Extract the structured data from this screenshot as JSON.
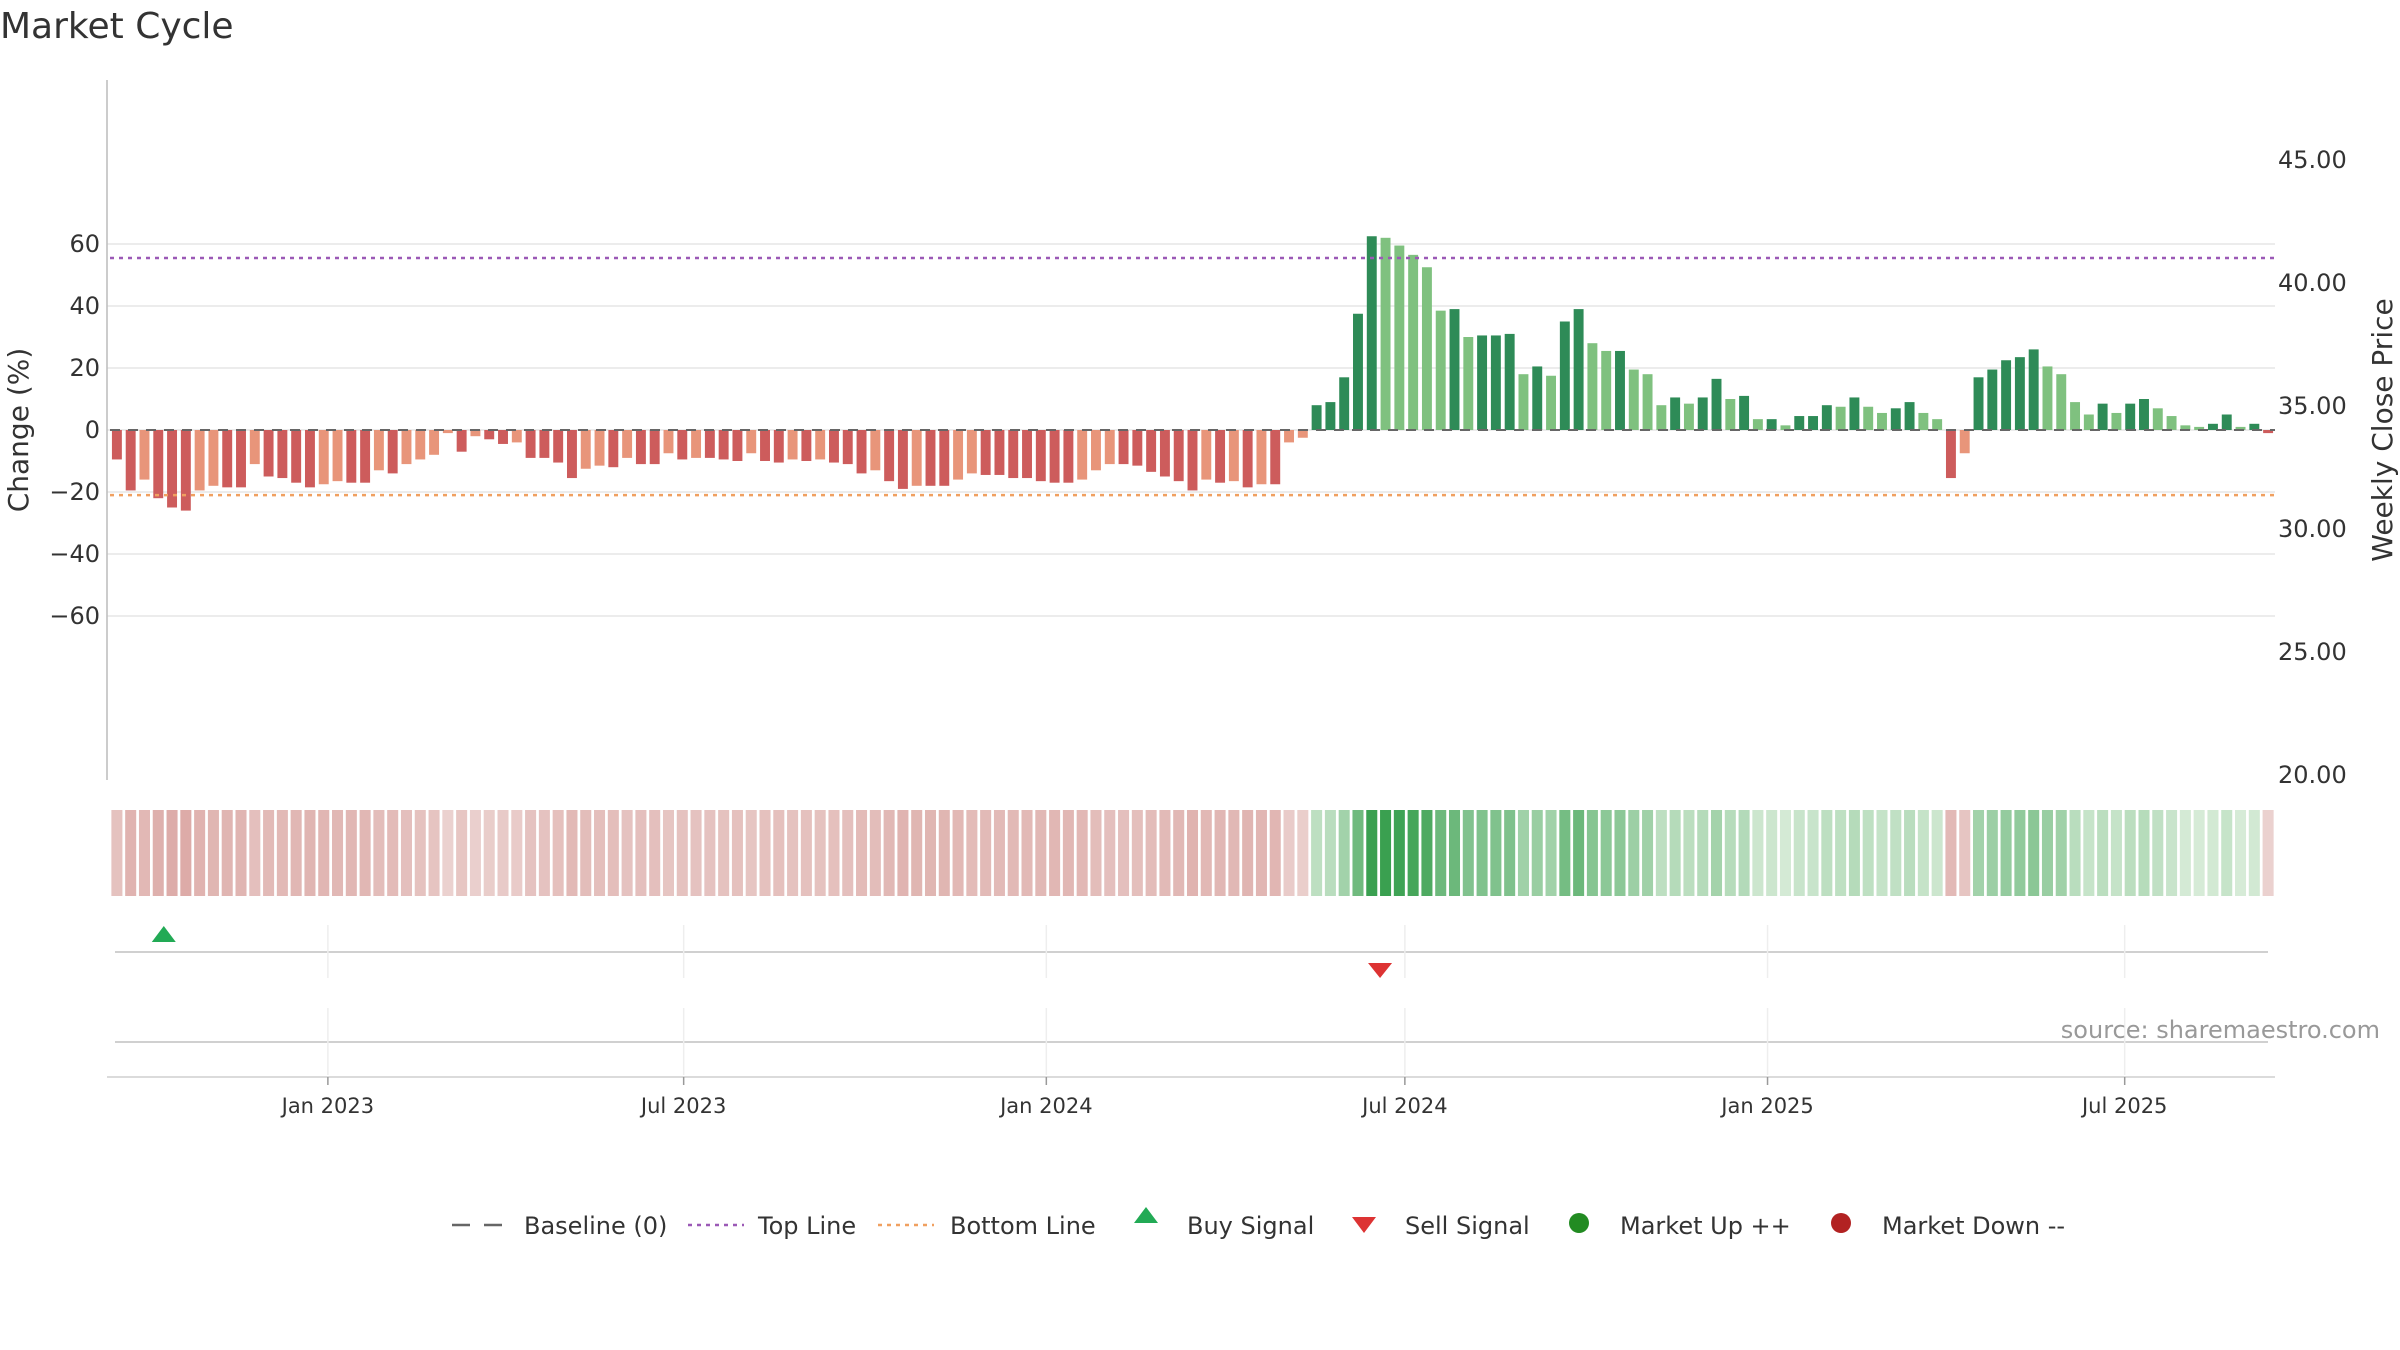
{
  "chart_data": {
    "type": "bar",
    "title": "Market Cycle",
    "ylabel": "Change (%)",
    "y2label": "Weekly Close Price",
    "ylim": [
      -68,
      68
    ],
    "y2lim": [
      20,
      47.2
    ],
    "yticks": [
      60,
      40,
      20,
      0,
      -20,
      -40,
      -60
    ],
    "ytick_labels": [
      "60",
      "40",
      "20",
      "0",
      "−20",
      "−40",
      "−60"
    ],
    "y2ticks": [
      45,
      40,
      35,
      30,
      25,
      20
    ],
    "y2tick_labels": [
      "45.00",
      "40.00",
      "35.00",
      "30.00",
      "25.00",
      "20.00"
    ],
    "top_line": 55.5,
    "bottom_line": -21,
    "x_start": "2022-09-05",
    "week_count": 157,
    "xticks": [
      {
        "label": "Jan 2023",
        "week": 15.3
      },
      {
        "label": "Jul 2023",
        "week": 41.1
      },
      {
        "label": "Jan 2024",
        "week": 67.4
      },
      {
        "label": "Jul 2024",
        "week": 93.4
      },
      {
        "label": "Jan 2025",
        "week": 119.7
      },
      {
        "label": "Jul 2025",
        "week": 145.6
      }
    ],
    "values": [
      -9.5,
      -19.5,
      -16,
      -22,
      -25,
      -26,
      -19.5,
      -18,
      -18.5,
      -18.5,
      -11,
      -15,
      -15.5,
      -17,
      -18.5,
      -17.5,
      -16.5,
      -17,
      -17,
      -13,
      -14,
      -11,
      -9.5,
      -8,
      -1,
      -7,
      -2,
      -3,
      -4.5,
      -4,
      -9,
      -9,
      -10.5,
      -15.5,
      -12.5,
      -11.5,
      -12,
      -9,
      -11,
      -11,
      -7.5,
      -9.5,
      -9,
      -9,
      -9.5,
      -10,
      -7.5,
      -10,
      -10.5,
      -9.5,
      -10,
      -9.5,
      -10.5,
      -11,
      -14,
      -13,
      -16.5,
      -19,
      -18,
      -18,
      -18,
      -16,
      -14,
      -14.5,
      -14.5,
      -15.5,
      -15.5,
      -16.5,
      -17,
      -17,
      -16,
      -13,
      -11,
      -11,
      -11.5,
      -13.5,
      -15,
      -16.5,
      -19.5,
      -16,
      -17,
      -16.5,
      -18.5,
      -17.5,
      -17.5,
      -4,
      -2.5,
      8,
      9,
      17,
      37.5,
      62.5,
      62,
      59.5,
      56.5,
      52.5,
      38.5,
      39,
      30,
      30.5,
      30.5,
      31,
      18,
      20.5,
      17.5,
      35,
      39,
      28,
      25.5,
      25.5,
      19.5,
      18,
      8,
      10.5,
      8.5,
      10.5,
      16.5,
      10,
      11,
      3.5,
      3.5,
      1.5,
      4.5,
      4.5,
      8,
      7.5,
      10.5,
      7.5,
      5.5,
      7,
      9,
      5.5,
      3.5,
      -15.5,
      -7.5,
      17,
      19.5,
      22.5,
      23.5,
      26,
      20.5,
      18,
      9,
      5,
      8.5,
      5.5,
      8.5,
      10,
      7,
      4.5,
      1.5,
      1,
      2,
      5,
      1,
      2,
      -1
    ],
    "signals": [
      {
        "type": "Buy Signal",
        "week": 3.4
      },
      {
        "type": "Sell Signal",
        "week": 91.6
      }
    ],
    "legend": [
      "Baseline (0)",
      "Top Line",
      "Bottom Line",
      "Buy Signal",
      "Sell Signal",
      "Market Up ++",
      "Market Down --"
    ],
    "legend_position": "bottom",
    "grid": true,
    "source": "source: sharemaestro.com",
    "colors": {
      "up_strong": "#2e8b57",
      "up_light": "#7fc17f",
      "down_strong": "#cd5c5c",
      "down_light": "#e8957a",
      "top_line": "#9b59b6",
      "bottom_line": "#f0a060",
      "buy": "#22aa55",
      "sell": "#dd3333",
      "market_up": "#228b22",
      "market_down": "#b22222",
      "baseline": "#666666"
    }
  }
}
